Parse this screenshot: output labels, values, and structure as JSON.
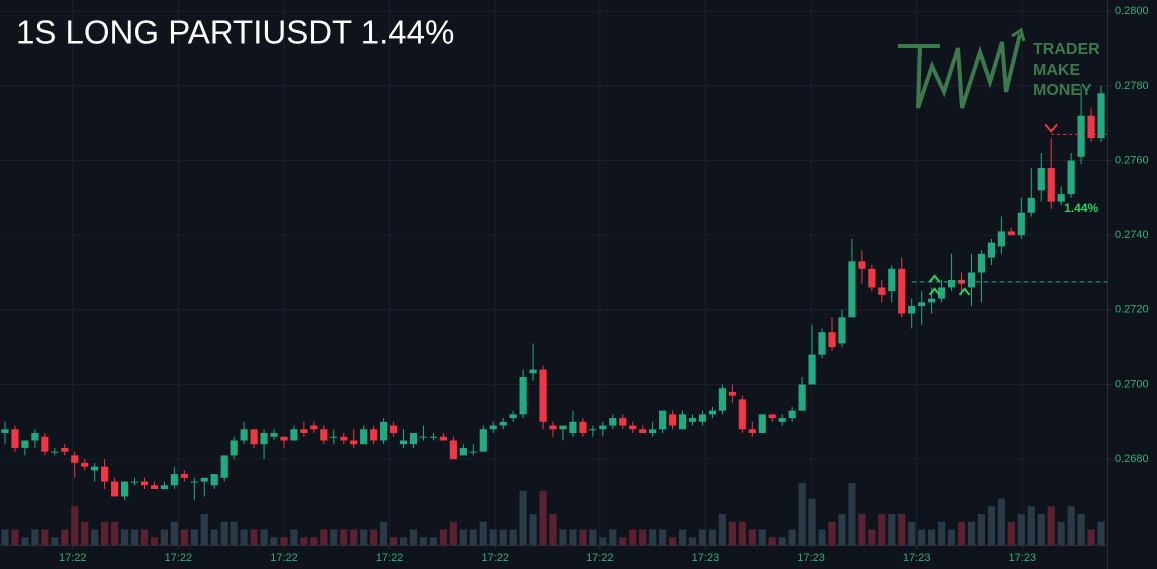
{
  "chart_data": {
    "type": "candlestick",
    "title": "1S LONG PARTIUSDT 1.44%",
    "pnl_label": "1.44%",
    "up_color": "#22ab80",
    "down_color": "#f23645",
    "up_volume_color": "#2b3a47",
    "down_volume_color": "#5a2230",
    "grid": true,
    "entry_price": 0.27275,
    "exit_price": 0.2767,
    "ylim": [
      0.2657,
      0.2803
    ],
    "yticks": [
      {
        "value": 0.268,
        "label": "0.2680"
      },
      {
        "value": 0.27,
        "label": "0.2700"
      },
      {
        "value": 0.272,
        "label": "0.2720"
      },
      {
        "value": 0.274,
        "label": "0.2740"
      },
      {
        "value": 0.276,
        "label": "0.2760"
      },
      {
        "value": 0.278,
        "label": "0.2780"
      },
      {
        "value": 0.28,
        "label": "0.2800"
      }
    ],
    "xlim": [
      -0.5,
      110.6
    ],
    "xticks": [
      {
        "value": 6.8,
        "label": "17:22"
      },
      {
        "value": 17.4,
        "label": "17:22"
      },
      {
        "value": 28.0,
        "label": "17:22"
      },
      {
        "value": 38.6,
        "label": "17:22"
      },
      {
        "value": 49.2,
        "label": "17:22"
      },
      {
        "value": 59.7,
        "label": "17:22"
      },
      {
        "value": 70.3,
        "label": "17:23"
      },
      {
        "value": 80.9,
        "label": "17:23"
      },
      {
        "value": 91.5,
        "label": "17:23"
      },
      {
        "value": 102.1,
        "label": "17:23"
      }
    ],
    "open": [
      0.2687,
      0.2688,
      0.2683,
      0.2685,
      0.2686,
      0.2682,
      0.2683,
      0.2681,
      0.2679,
      0.2677,
      0.2678,
      0.2674,
      0.267,
      0.2674,
      0.2674,
      0.2673,
      0.2672,
      0.2673,
      0.2676,
      0.2674,
      0.2674,
      0.2673,
      0.2675,
      0.2681,
      0.2685,
      0.2688,
      0.2684,
      0.2686,
      0.2686,
      0.2685,
      0.2688,
      0.2689,
      0.2688,
      0.2686,
      0.2686,
      0.2685,
      0.2684,
      0.2688,
      0.2685,
      0.2689,
      0.2684,
      0.2684,
      0.2686,
      0.2686,
      0.2686,
      0.2685,
      0.2681,
      0.2682,
      0.2682,
      0.2688,
      0.2689,
      0.2691,
      0.2692,
      0.2703,
      0.2704,
      0.2689,
      0.2688,
      0.2687,
      0.269,
      0.2688,
      0.2688,
      0.2689,
      0.2691,
      0.2689,
      0.2688,
      0.2687,
      0.2688,
      0.2692,
      0.2688,
      0.269,
      0.269,
      0.2692,
      0.2693,
      0.2698,
      0.2696,
      0.2688,
      0.2687,
      0.2692,
      0.269,
      0.2691,
      0.2693,
      0.27,
      0.2708,
      0.2714,
      0.2711,
      0.2718,
      0.2733,
      0.2731,
      0.2726,
      0.2725,
      0.2731,
      0.2719,
      0.2721,
      0.2722,
      0.2723,
      0.2726,
      0.2728,
      0.2726,
      0.273,
      0.2734,
      0.2737,
      0.2741,
      0.274,
      0.2746,
      0.2752,
      0.2758,
      0.2749,
      0.2751,
      0.2761,
      0.2772,
      0.2766
    ],
    "high": [
      0.269,
      0.2689,
      0.2685,
      0.2688,
      0.2687,
      0.2683,
      0.2684,
      0.2682,
      0.268,
      0.2679,
      0.268,
      0.2675,
      0.2674,
      0.2675,
      0.2675,
      0.2674,
      0.2674,
      0.2678,
      0.2677,
      0.2675,
      0.2675,
      0.2676,
      0.2681,
      0.2686,
      0.269,
      0.2688,
      0.2688,
      0.2688,
      0.2686,
      0.2689,
      0.269,
      0.269,
      0.2689,
      0.2688,
      0.2687,
      0.2688,
      0.2689,
      0.2689,
      0.2691,
      0.269,
      0.2688,
      0.2687,
      0.2689,
      0.2687,
      0.2687,
      0.2686,
      0.2684,
      0.2684,
      0.2689,
      0.269,
      0.2691,
      0.2693,
      0.2704,
      0.2711,
      0.2705,
      0.269,
      0.2689,
      0.2693,
      0.2691,
      0.2689,
      0.269,
      0.2692,
      0.2692,
      0.269,
      0.2689,
      0.269,
      0.2693,
      0.2693,
      0.2693,
      0.2692,
      0.2693,
      0.2694,
      0.27,
      0.27,
      0.2697,
      0.269,
      0.2692,
      0.2692,
      0.2692,
      0.2694,
      0.2702,
      0.2716,
      0.2715,
      0.2718,
      0.272,
      0.2739,
      0.2736,
      0.2732,
      0.2728,
      0.2732,
      0.2734,
      0.2723,
      0.2725,
      0.2726,
      0.2728,
      0.2735,
      0.273,
      0.2735,
      0.2736,
      0.2739,
      0.2745,
      0.2742,
      0.275,
      0.2758,
      0.2762,
      0.2766,
      0.2753,
      0.2762,
      0.278,
      0.2774,
      0.278
    ],
    "low": [
      0.2684,
      0.2682,
      0.2681,
      0.2683,
      0.2681,
      0.2681,
      0.2681,
      0.2675,
      0.2677,
      0.2674,
      0.2672,
      0.267,
      0.2669,
      0.2673,
      0.2672,
      0.2672,
      0.2672,
      0.2672,
      0.2674,
      0.2669,
      0.267,
      0.2672,
      0.2674,
      0.268,
      0.2684,
      0.2683,
      0.268,
      0.2685,
      0.2683,
      0.2685,
      0.2686,
      0.2687,
      0.2684,
      0.2684,
      0.2684,
      0.2683,
      0.2684,
      0.2684,
      0.2684,
      0.2686,
      0.2683,
      0.2683,
      0.2685,
      0.2685,
      0.2685,
      0.268,
      0.2681,
      0.2681,
      0.2682,
      0.2687,
      0.2688,
      0.269,
      0.2691,
      0.2701,
      0.2688,
      0.2686,
      0.2685,
      0.2686,
      0.2686,
      0.2686,
      0.2686,
      0.2688,
      0.2688,
      0.2687,
      0.2687,
      0.2686,
      0.2687,
      0.2688,
      0.2688,
      0.2689,
      0.2689,
      0.2691,
      0.2692,
      0.2695,
      0.2687,
      0.2686,
      0.2687,
      0.269,
      0.2689,
      0.269,
      0.2693,
      0.27,
      0.2707,
      0.2709,
      0.271,
      0.2718,
      0.2727,
      0.2725,
      0.2722,
      0.2722,
      0.2718,
      0.2715,
      0.2716,
      0.2719,
      0.2722,
      0.2725,
      0.2724,
      0.2721,
      0.2722,
      0.2732,
      0.2735,
      0.274,
      0.2739,
      0.2745,
      0.2749,
      0.2747,
      0.2748,
      0.275,
      0.2759,
      0.2765,
      0.2765
    ],
    "close": [
      0.2688,
      0.2683,
      0.2685,
      0.2687,
      0.2682,
      0.2682,
      0.2682,
      0.2679,
      0.2678,
      0.2678,
      0.2674,
      0.267,
      0.2674,
      0.2674,
      0.2673,
      0.2672,
      0.2673,
      0.2676,
      0.2675,
      0.2674,
      0.2675,
      0.2676,
      0.2681,
      0.2685,
      0.2688,
      0.2684,
      0.2687,
      0.2687,
      0.2685,
      0.2688,
      0.2687,
      0.2688,
      0.2685,
      0.2686,
      0.2685,
      0.2684,
      0.2688,
      0.2685,
      0.269,
      0.2687,
      0.2685,
      0.2687,
      0.2686,
      0.2686,
      0.2685,
      0.268,
      0.2683,
      0.2682,
      0.2688,
      0.2689,
      0.269,
      0.2692,
      0.2702,
      0.2704,
      0.269,
      0.2688,
      0.2689,
      0.269,
      0.2687,
      0.2688,
      0.2689,
      0.2691,
      0.2689,
      0.2688,
      0.2687,
      0.2688,
      0.2693,
      0.2689,
      0.2692,
      0.2691,
      0.2692,
      0.2693,
      0.2699,
      0.2697,
      0.2688,
      0.2687,
      0.2692,
      0.2691,
      0.2691,
      0.2693,
      0.27,
      0.2708,
      0.2714,
      0.271,
      0.2718,
      0.2733,
      0.2731,
      0.2726,
      0.2724,
      0.2731,
      0.2719,
      0.2721,
      0.2722,
      0.2723,
      0.2726,
      0.2728,
      0.2727,
      0.273,
      0.2735,
      0.2738,
      0.2741,
      0.274,
      0.2746,
      0.275,
      0.2758,
      0.2749,
      0.2751,
      0.276,
      0.2772,
      0.2766,
      0.2778
    ],
    "volume": [
      2,
      2,
      1,
      2,
      2,
      1,
      2,
      5,
      3,
      2,
      3,
      3,
      2,
      2,
      2,
      1,
      2,
      3,
      2,
      2,
      4,
      2,
      3,
      3,
      2,
      2,
      2,
      1,
      1,
      2,
      1,
      1,
      2,
      2,
      2,
      2,
      2,
      2,
      3,
      1,
      1,
      2,
      1,
      1,
      2,
      3,
      2,
      2,
      3,
      2,
      2,
      2,
      7,
      4,
      7,
      4,
      2,
      2,
      2,
      2,
      1,
      2,
      1,
      2,
      2,
      2,
      2,
      1,
      2,
      1,
      2,
      2,
      4,
      3,
      3,
      2,
      2,
      1,
      1,
      2,
      8,
      6,
      2,
      3,
      4,
      8,
      4,
      2,
      4,
      4,
      4,
      3,
      2,
      2,
      3,
      2,
      3,
      3,
      4,
      5,
      6,
      3,
      4,
      5,
      4,
      5,
      3,
      5,
      4,
      2,
      3
    ]
  },
  "logo": {
    "lines": [
      "TRADER",
      "MAKE",
      "MONEY"
    ]
  }
}
